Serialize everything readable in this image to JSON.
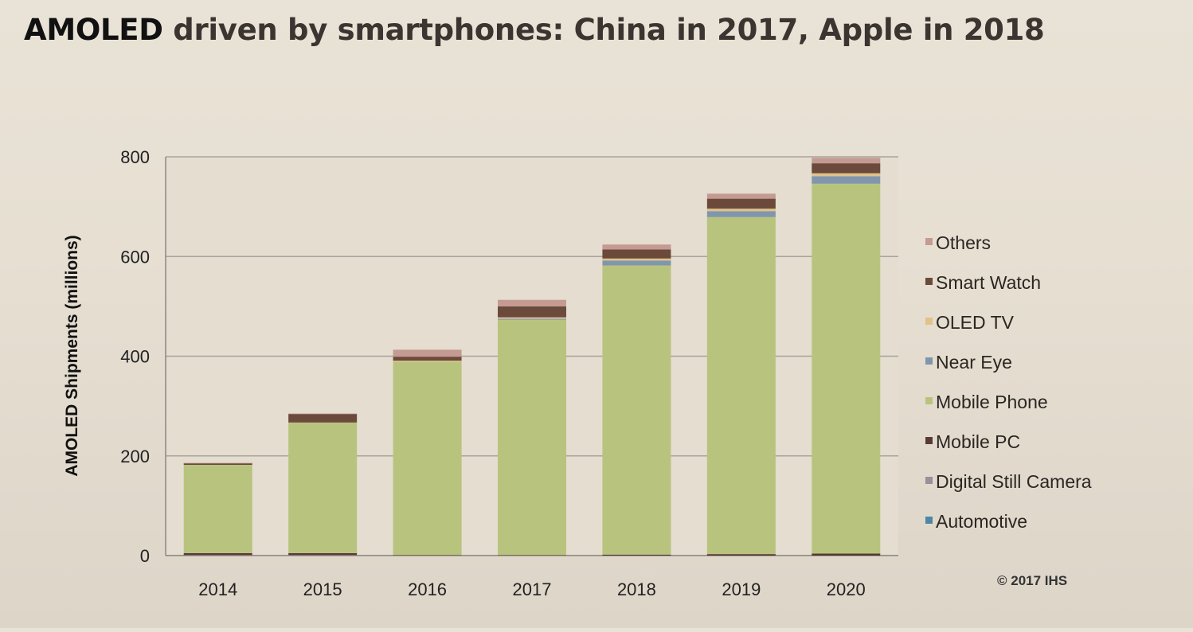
{
  "slide": {
    "title_lead": "AMOLED",
    "title_rest": " driven by smartphones: China in 2017, Apple in 2018",
    "copyright": "© 2017 IHS"
  },
  "chart_data": {
    "type": "bar",
    "stacked": true,
    "title": "AMOLED driven by smartphones: China in 2017, Apple in 2018",
    "xlabel": "",
    "ylabel": "AMOLED Shipments (millions)",
    "ylim": [
      0,
      800
    ],
    "yticks": [
      0,
      200,
      400,
      600,
      800
    ],
    "grid": true,
    "legend_position": "right",
    "categories": [
      "2014",
      "2015",
      "2016",
      "2017",
      "2018",
      "2019",
      "2020"
    ],
    "series": [
      {
        "name": "Automotive",
        "color": "#4e86a8",
        "values": [
          0,
          0,
          0,
          0,
          0,
          0,
          0
        ]
      },
      {
        "name": "Digital Still Camera",
        "color": "#9b8f99",
        "values": [
          1,
          1,
          0,
          0,
          0,
          0,
          0
        ]
      },
      {
        "name": "Mobile PC",
        "color": "#5a3a34",
        "values": [
          4,
          4,
          1,
          1,
          2,
          3,
          4
        ]
      },
      {
        "name": "Mobile Phone",
        "color": "#b8c47e",
        "values": [
          177,
          262,
          388,
          472,
          580,
          676,
          742
        ]
      },
      {
        "name": "Near Eye",
        "color": "#8096ac",
        "values": [
          0,
          0,
          0,
          2,
          10,
          12,
          15
        ]
      },
      {
        "name": "OLED TV",
        "color": "#e0c28a",
        "values": [
          0,
          0,
          2,
          3,
          4,
          5,
          6
        ]
      },
      {
        "name": "Smart Watch",
        "color": "#6b4a3c",
        "values": [
          3,
          17,
          8,
          22,
          18,
          20,
          20
        ]
      },
      {
        "name": "Others",
        "color": "#c49a92",
        "values": [
          1,
          1,
          14,
          13,
          10,
          10,
          11
        ]
      }
    ]
  },
  "legend": {
    "order": [
      "Others",
      "Smart Watch",
      "OLED TV",
      "Near Eye",
      "Mobile Phone",
      "Mobile PC",
      "Digital Still Camera",
      "Automotive"
    ]
  }
}
